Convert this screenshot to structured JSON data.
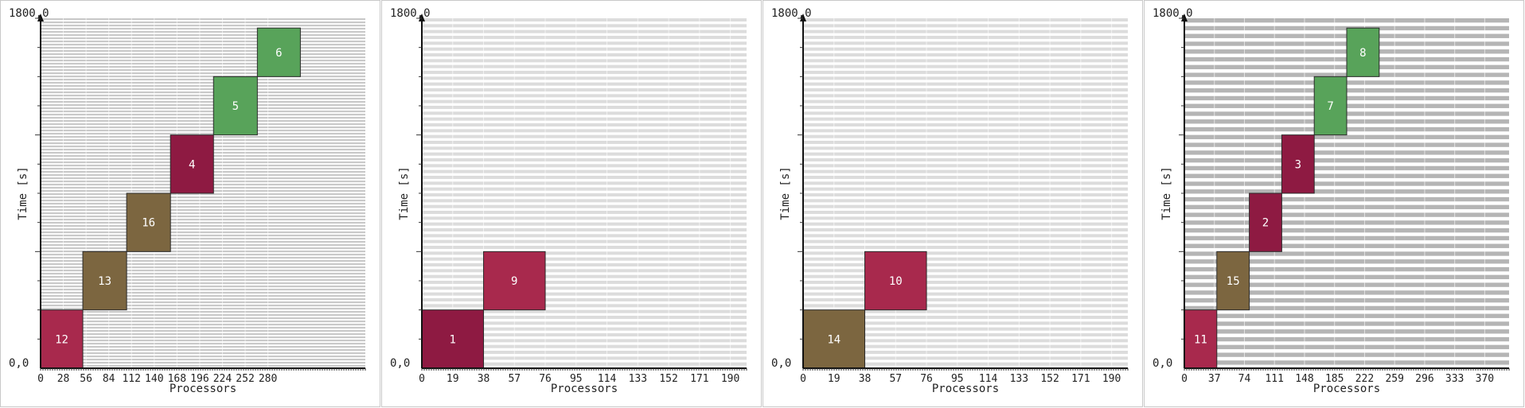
{
  "chart_data": [
    {
      "type": "gantt",
      "title": "",
      "xlabel": "Processors",
      "ylabel": "Time [s]",
      "origin_label": "0,0",
      "top_label": "1800,0",
      "xlim": [
        0,
        400
      ],
      "ylim": [
        0,
        1800
      ],
      "x_ticks": [
        "0",
        "28",
        "56",
        "84",
        "112",
        "140",
        "168",
        "196",
        "224",
        "252",
        "280"
      ],
      "x_tick_values": [
        0,
        28,
        56,
        84,
        112,
        140,
        168,
        196,
        224,
        252,
        280
      ],
      "stripe_count": 110,
      "stripe_color": "#c9c9c9",
      "jobs": [
        {
          "id": "12",
          "x0": 0,
          "x1": 52,
          "y0": 0,
          "y1": 300,
          "color": "#a8294d"
        },
        {
          "id": "13",
          "x0": 52,
          "x1": 106,
          "y0": 300,
          "y1": 600,
          "color": "#7c6640"
        },
        {
          "id": "16",
          "x0": 106,
          "x1": 160,
          "y0": 600,
          "y1": 900,
          "color": "#7c6640"
        },
        {
          "id": "4",
          "x0": 160,
          "x1": 213,
          "y0": 900,
          "y1": 1200,
          "color": "#8e1a42"
        },
        {
          "id": "5",
          "x0": 213,
          "x1": 267,
          "y0": 1200,
          "y1": 1500,
          "color": "#58a35a"
        },
        {
          "id": "6",
          "x0": 267,
          "x1": 320,
          "y0": 1500,
          "y1": 1750,
          "color": "#58a35a"
        }
      ]
    },
    {
      "type": "gantt",
      "title": "",
      "xlabel": "Processors",
      "ylabel": "Time [s]",
      "origin_label": "0,0",
      "top_label": "1800,0",
      "xlim": [
        0,
        200
      ],
      "ylim": [
        0,
        1800
      ],
      "x_ticks": [
        "0",
        "19",
        "38",
        "57",
        "76",
        "95",
        "114",
        "133",
        "152",
        "171",
        "190"
      ],
      "x_tick_values": [
        0,
        19,
        38,
        57,
        76,
        95,
        114,
        133,
        152,
        171,
        190
      ],
      "stripe_count": 60,
      "stripe_color": "#dcdcdc",
      "jobs": [
        {
          "id": "1",
          "x0": 0,
          "x1": 38,
          "y0": 0,
          "y1": 300,
          "color": "#8e1a42"
        },
        {
          "id": "9",
          "x0": 38,
          "x1": 76,
          "y0": 300,
          "y1": 600,
          "color": "#a8294d"
        }
      ]
    },
    {
      "type": "gantt",
      "title": "",
      "xlabel": "Processors",
      "ylabel": "Time [s]",
      "origin_label": "0,0",
      "top_label": "1800,0",
      "xlim": [
        0,
        200
      ],
      "ylim": [
        0,
        1800
      ],
      "x_ticks": [
        "0",
        "19",
        "38",
        "57",
        "76",
        "95",
        "114",
        "133",
        "152",
        "171",
        "190"
      ],
      "x_tick_values": [
        0,
        19,
        38,
        57,
        76,
        95,
        114,
        133,
        152,
        171,
        190
      ],
      "stripe_count": 60,
      "stripe_color": "#dcdcdc",
      "jobs": [
        {
          "id": "14",
          "x0": 0,
          "x1": 38,
          "y0": 0,
          "y1": 300,
          "color": "#7c6640"
        },
        {
          "id": "10",
          "x0": 38,
          "x1": 76,
          "y0": 300,
          "y1": 600,
          "color": "#a8294d"
        }
      ]
    },
    {
      "type": "gantt",
      "title": "",
      "xlabel": "Processors",
      "ylabel": "Time [s]",
      "origin_label": "0,0",
      "top_label": "1800,0",
      "xlim": [
        0,
        400
      ],
      "ylim": [
        0,
        1800
      ],
      "x_ticks": [
        "0",
        "37",
        "74",
        "111",
        "148",
        "185",
        "222",
        "259",
        "296",
        "333",
        "370"
      ],
      "x_tick_values": [
        0,
        37,
        74,
        111,
        148,
        185,
        222,
        259,
        296,
        333,
        370
      ],
      "stripe_count": 45,
      "stripe_color": "#b5b5b5",
      "jobs": [
        {
          "id": "11",
          "x0": 0,
          "x1": 40,
          "y0": 0,
          "y1": 300,
          "color": "#a8294d"
        },
        {
          "id": "15",
          "x0": 40,
          "x1": 80,
          "y0": 300,
          "y1": 600,
          "color": "#7c6640"
        },
        {
          "id": "2",
          "x0": 80,
          "x1": 120,
          "y0": 600,
          "y1": 900,
          "color": "#8e1a42"
        },
        {
          "id": "3",
          "x0": 120,
          "x1": 160,
          "y0": 900,
          "y1": 1200,
          "color": "#8e1a42"
        },
        {
          "id": "7",
          "x0": 160,
          "x1": 200,
          "y0": 1200,
          "y1": 1500,
          "color": "#58a35a"
        },
        {
          "id": "8",
          "x0": 200,
          "x1": 240,
          "y0": 1500,
          "y1": 1750,
          "color": "#58a35a"
        }
      ]
    }
  ]
}
